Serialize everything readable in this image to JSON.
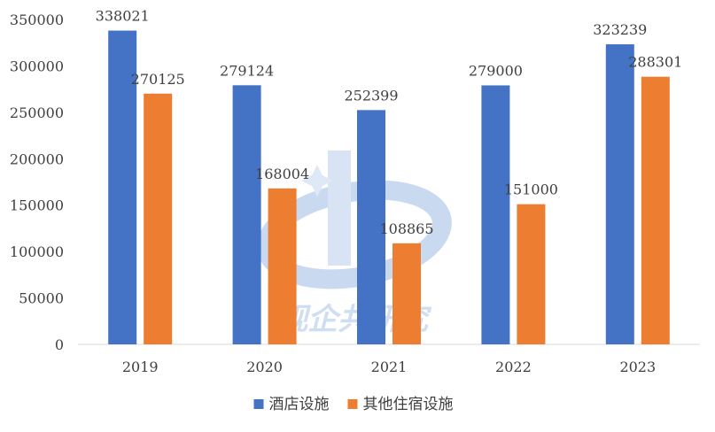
{
  "chart_data": {
    "type": "bar",
    "categories": [
      "2019",
      "2020",
      "2021",
      "2022",
      "2023"
    ],
    "series": [
      {
        "name": "酒店设施",
        "color": "#4472C4",
        "values": [
          338021,
          279124,
          252399,
          279000,
          323239
        ]
      },
      {
        "name": "其他住宿设施",
        "color": "#ED7D31",
        "values": [
          270125,
          168004,
          108865,
          151000,
          288301
        ]
      }
    ],
    "ylim": [
      0,
      350000
    ],
    "yticks": [
      0,
      50000,
      100000,
      150000,
      200000,
      250000,
      300000,
      350000
    ],
    "grid": false,
    "legend_position": "bottom",
    "data_labels": true
  },
  "watermark": {
    "text": "观企共研究",
    "color": "#a9c4e6"
  }
}
